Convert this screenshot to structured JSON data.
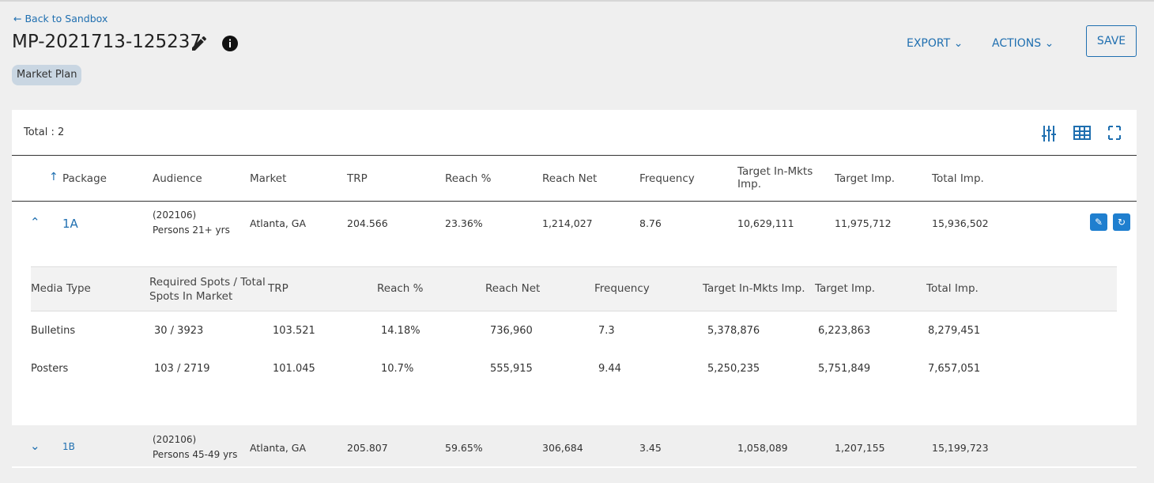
{
  "header": {
    "back": "Back to Sandbox",
    "title": "MP-2021713-125237",
    "tag": "Market Plan",
    "export": "EXPORT",
    "actions": "ACTIONS",
    "save": "SAVE"
  },
  "table": {
    "total": "Total : 2",
    "columns": [
      "Package",
      "Audience",
      "Market",
      "TRP",
      "Reach %",
      "Reach Net",
      "Frequency",
      "Target In-Mkts Imp.",
      "Target Imp.",
      "Total Imp."
    ],
    "rows": [
      {
        "package": "1A",
        "audience": [
          "(202106)",
          "Persons 21+ yrs"
        ],
        "cells": [
          "Atlanta, GA",
          "204.566",
          "23.36%",
          "1,214,027",
          "8.76",
          "10,629,111",
          "11,975,712",
          "15,936,502"
        ]
      },
      {
        "package": "1B",
        "audience": [
          "(202106)",
          "Persons 45-49 yrs"
        ],
        "cells": [
          "Atlanta, GA",
          "205.807",
          "59.65%",
          "306,684",
          "3.45",
          "1,058,089",
          "1,207,155",
          "15,199,723"
        ]
      }
    ]
  },
  "subtable": {
    "columns": [
      "Media Type",
      "Required Spots / Total Spots In Market",
      "TRP",
      "Reach %",
      "Reach Net",
      "Frequency",
      "Target In-Mkts Imp.",
      "Target Imp.",
      "Total Imp."
    ],
    "rows": [
      [
        "Bulletins",
        "30 / 3923",
        "103.521",
        "14.18%",
        "736,960",
        "7.3",
        "5,378,876",
        "6,223,863",
        "8,279,451"
      ],
      [
        "Posters",
        "103 / 2719",
        "101.045",
        "10.7%",
        "555,915",
        "9.44",
        "5,250,235",
        "5,751,849",
        "7,657,051"
      ]
    ]
  }
}
